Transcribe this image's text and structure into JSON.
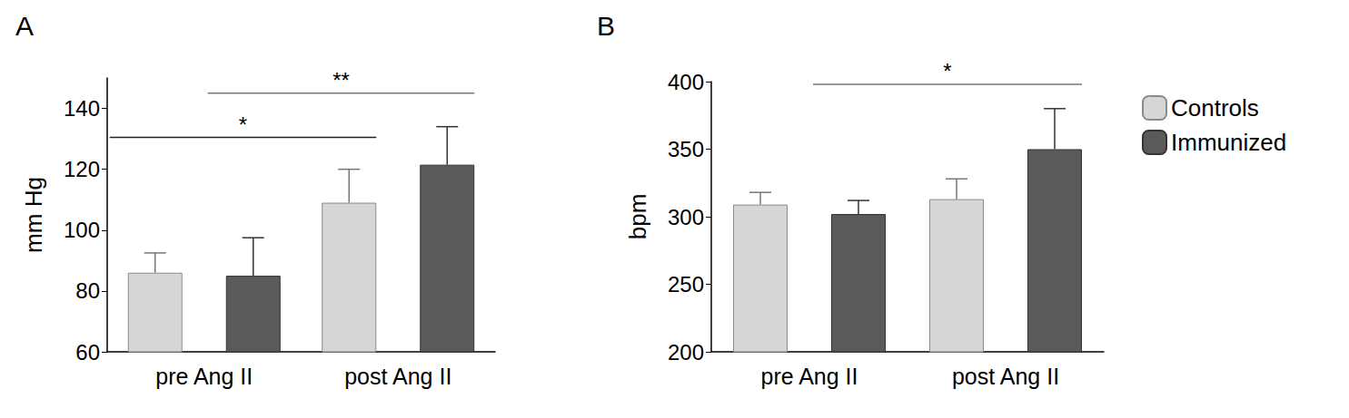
{
  "chart_data": [
    {
      "type": "bar",
      "title": "A",
      "y_label": "mm Hg",
      "categories": [
        "pre Ang II",
        "post Ang II"
      ],
      "series": [
        {
          "name": "Controls",
          "color": "#d6d6d6",
          "values": [
            86,
            109
          ],
          "errors": [
            6.5,
            11
          ]
        },
        {
          "name": "Immunized",
          "color": "#5a5a5a",
          "values": [
            85,
            121.5
          ],
          "errors": [
            12.5,
            12.5
          ]
        }
      ],
      "ylim": [
        60,
        150
      ],
      "yticks": [
        60,
        80,
        100,
        120,
        140
      ],
      "grid": false,
      "annotations": [
        {
          "text": "*",
          "series": "Controls",
          "from": "pre Ang II",
          "to": "post Ang II",
          "y": 130.5
        },
        {
          "text": "**",
          "series": "Immunized",
          "from": "pre Ang II",
          "to": "post Ang II",
          "y": 145
        }
      ]
    },
    {
      "type": "bar",
      "title": "B",
      "y_label": "bpm",
      "categories": [
        "pre Ang II",
        "post Ang II"
      ],
      "series": [
        {
          "name": "Controls",
          "color": "#d6d6d6",
          "values": [
            309,
            313
          ],
          "errors": [
            9,
            15
          ]
        },
        {
          "name": "Immunized",
          "color": "#5a5a5a",
          "values": [
            302,
            350
          ],
          "errors": [
            10,
            30
          ]
        }
      ],
      "ylim": [
        200,
        400
      ],
      "yticks": [
        200,
        250,
        300,
        350,
        400
      ],
      "grid": false,
      "legend": "right",
      "annotations": [
        {
          "text": "*",
          "series": "Immunized",
          "from": "pre Ang II",
          "to": "post Ang II",
          "y": 398
        }
      ]
    }
  ]
}
